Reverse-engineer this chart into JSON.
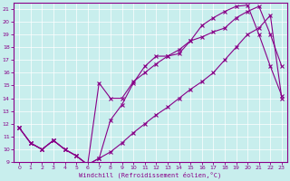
{
  "xlabel": "Windchill (Refroidissement éolien,°C)",
  "xlim": [
    -0.5,
    23.5
  ],
  "ylim": [
    9,
    21.5
  ],
  "yticks": [
    9,
    10,
    11,
    12,
    13,
    14,
    15,
    16,
    17,
    18,
    19,
    20,
    21
  ],
  "xticks": [
    0,
    1,
    2,
    3,
    4,
    5,
    6,
    7,
    8,
    9,
    10,
    11,
    12,
    13,
    14,
    15,
    16,
    17,
    18,
    19,
    20,
    21,
    22,
    23
  ],
  "bg_color": "#c8eeed",
  "line_color": "#880088",
  "grid_color": "#ffffff",
  "series1_x": [
    0,
    1,
    2,
    3,
    4,
    5,
    6,
    7,
    8,
    9,
    10,
    11,
    12,
    13,
    14,
    15,
    16,
    17,
    18,
    19,
    20,
    21,
    22,
    23
  ],
  "series1_y": [
    11.7,
    10.5,
    10.0,
    10.7,
    10.0,
    9.5,
    8.8,
    9.3,
    9.8,
    10.5,
    11.3,
    12.0,
    12.7,
    13.3,
    14.0,
    14.7,
    15.3,
    16.0,
    17.0,
    18.0,
    19.0,
    19.5,
    20.5,
    14.0
  ],
  "series2_x": [
    0,
    1,
    2,
    3,
    4,
    5,
    6,
    7,
    8,
    9,
    10,
    11,
    12,
    13,
    14,
    15,
    16,
    17,
    18,
    19,
    20,
    21,
    22,
    23
  ],
  "series2_y": [
    11.7,
    10.5,
    10.0,
    10.7,
    10.0,
    9.5,
    8.8,
    9.3,
    12.3,
    13.5,
    15.2,
    16.5,
    17.3,
    17.3,
    17.5,
    18.5,
    18.8,
    19.2,
    19.5,
    20.3,
    20.8,
    21.2,
    19.0,
    16.5
  ],
  "series3_x": [
    0,
    1,
    2,
    3,
    4,
    5,
    6,
    7,
    8,
    9,
    10,
    11,
    12,
    13,
    14,
    15,
    16,
    17,
    18,
    19,
    20,
    21,
    22,
    23
  ],
  "series3_y": [
    11.7,
    10.5,
    10.0,
    10.7,
    10.0,
    9.5,
    8.8,
    15.2,
    14.0,
    14.0,
    15.3,
    16.0,
    16.7,
    17.3,
    17.8,
    18.5,
    19.7,
    20.3,
    20.8,
    21.2,
    21.3,
    19.0,
    16.5,
    14.2
  ]
}
